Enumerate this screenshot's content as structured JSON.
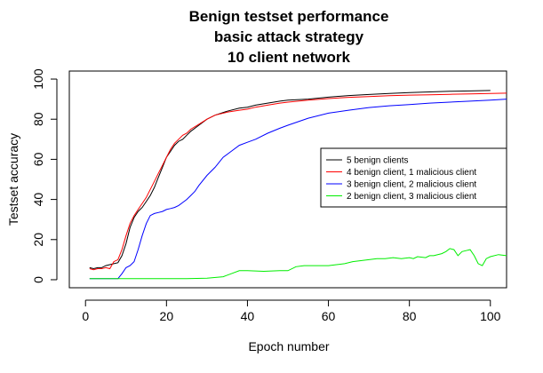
{
  "chart_data": {
    "type": "line",
    "title_lines": [
      "Benign testset performance",
      "basic attack strategy",
      "10 client network"
    ],
    "xlabel": "Epoch number",
    "ylabel": "Testset accuracy",
    "xlim": [
      -4,
      104
    ],
    "ylim": [
      -4,
      104
    ],
    "xticks": [
      0,
      20,
      40,
      60,
      80,
      100
    ],
    "yticks": [
      0,
      20,
      40,
      60,
      80,
      100
    ],
    "grid": false,
    "legend_position": "right",
    "series": [
      {
        "name": "5 benign clients",
        "color": "#000000",
        "x": [
          1,
          2,
          3,
          4,
          5,
          6,
          7,
          8,
          9,
          10,
          11,
          12,
          13,
          14,
          15,
          16,
          17,
          18,
          19,
          20,
          21,
          22,
          23,
          24,
          25,
          26,
          28,
          30,
          32,
          35,
          38,
          40,
          42,
          45,
          48,
          50,
          55,
          60,
          65,
          70,
          75,
          80,
          85,
          90,
          95,
          100
        ],
        "y": [
          6,
          5.5,
          6,
          6,
          7,
          7.5,
          8,
          8.5,
          12,
          18,
          26,
          31,
          34,
          36,
          39,
          42,
          46,
          51,
          56,
          61,
          64,
          67,
          69,
          70,
          72,
          74,
          77,
          80,
          82,
          84,
          85.5,
          86,
          87,
          88,
          89,
          89.5,
          90,
          91,
          91.8,
          92.3,
          92.8,
          93.3,
          93.6,
          93.9,
          94.1,
          94.3
        ]
      },
      {
        "name": "4 benign client, 1 malicious client",
        "color": "#ff0000",
        "x": [
          1,
          2,
          3,
          4,
          5,
          6,
          7,
          8,
          9,
          10,
          11,
          12,
          13,
          14,
          15,
          16,
          17,
          18,
          19,
          20,
          21,
          22,
          23,
          24,
          25,
          26,
          28,
          30,
          32,
          35,
          38,
          40,
          42,
          45,
          48,
          50,
          55,
          60,
          65,
          70,
          75,
          80,
          85,
          90,
          95,
          100,
          104
        ],
        "y": [
          5.5,
          5,
          5.5,
          5.5,
          6,
          5.5,
          9,
          10,
          15,
          22,
          28,
          32,
          35,
          38,
          41,
          45,
          49,
          53,
          57,
          61,
          65,
          68,
          70,
          72,
          73,
          75,
          77.5,
          80,
          82,
          83.5,
          84.5,
          85,
          86,
          87,
          88,
          88.5,
          89.5,
          90.3,
          90.9,
          91.3,
          91.7,
          92,
          92.2,
          92.4,
          92.6,
          92.8,
          93
        ]
      },
      {
        "name": "3 benign client, 2 malicious client",
        "color": "#0000ff",
        "x": [
          1,
          2,
          3,
          4,
          5,
          6,
          7,
          8,
          9,
          10,
          11,
          12,
          13,
          14,
          15,
          16,
          17,
          18,
          19,
          20,
          21,
          22,
          23,
          24,
          25,
          26,
          27,
          28,
          30,
          32,
          34,
          36,
          38,
          40,
          42,
          45,
          48,
          50,
          55,
          60,
          65,
          70,
          75,
          80,
          85,
          90,
          95,
          100,
          104
        ],
        "y": [
          0.5,
          0.5,
          0.5,
          0.5,
          0.5,
          0.5,
          0.5,
          0.5,
          3,
          6,
          7,
          9,
          15,
          22,
          28,
          32,
          33,
          33.5,
          34,
          35,
          35.5,
          36,
          37,
          38.5,
          40,
          42,
          44,
          47,
          52,
          56,
          61,
          64,
          67,
          68.5,
          70,
          73,
          75.5,
          77,
          80.5,
          83,
          84.5,
          85.8,
          86.7,
          87.3,
          88,
          88.5,
          89,
          89.5,
          90
        ]
      },
      {
        "name": "2 benign client, 3 malicious client",
        "color": "#00ee00",
        "x": [
          1,
          5,
          10,
          15,
          20,
          25,
          30,
          34,
          36,
          38,
          40,
          44,
          48,
          50,
          52,
          54,
          58,
          60,
          62,
          64,
          66,
          68,
          70,
          72,
          74,
          76,
          78,
          80,
          81,
          82,
          84,
          85,
          86,
          88,
          89,
          90,
          91,
          92,
          93,
          94,
          95,
          96,
          97,
          98,
          99,
          100,
          102,
          104
        ],
        "y": [
          0.5,
          0.5,
          0.5,
          0.5,
          0.5,
          0.5,
          0.8,
          1.5,
          3,
          4.5,
          4.5,
          4.2,
          4.5,
          4.5,
          6.5,
          7,
          7,
          7,
          7.5,
          8,
          9,
          9.5,
          10,
          10.5,
          10.5,
          11,
          10.5,
          11,
          10.5,
          11.5,
          11,
          12,
          12,
          13,
          14,
          15.5,
          15,
          12,
          14,
          14.5,
          15,
          12,
          8,
          7,
          10.5,
          11.5,
          12.5,
          12
        ]
      }
    ]
  }
}
